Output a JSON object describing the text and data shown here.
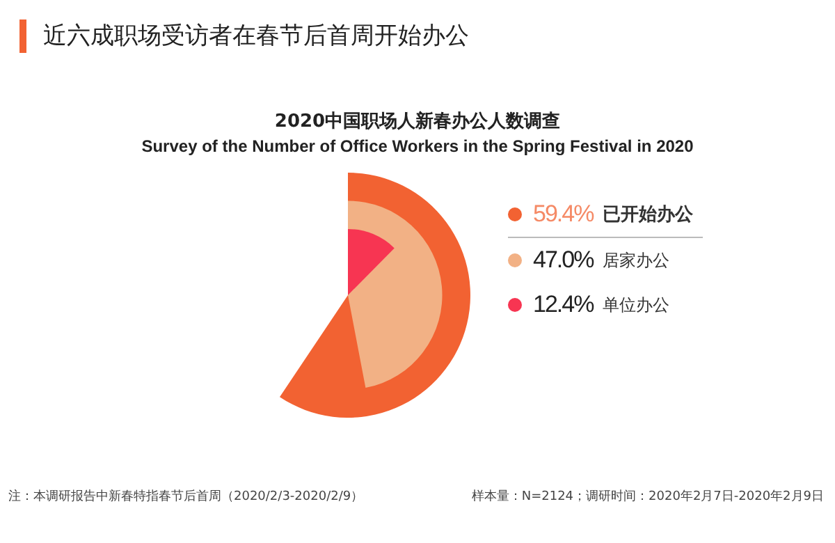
{
  "chart_data": {
    "type": "other",
    "title": "近六成职场受访者在春节后首周开始办公",
    "subtitle": "2020中国职场人新春办公人数调查",
    "annotations": [
      "Survey of the Number of Office Workers in the Spring Festival in 2020",
      "注：本调研报告中新春特指春节后首周（2020/2/3-2020/2/9）",
      "样本量：N=2124；调研时间：2020年2月7日-2020年2月9日"
    ],
    "categories": [
      "已开始办公",
      "居家办公",
      "单位办公"
    ],
    "values": [
      59.4,
      47.0,
      12.4
    ],
    "value_labels": [
      "59.4%",
      "47.0%",
      "12.4%"
    ],
    "colors": [
      "#f26232",
      "#f2b185",
      "#f73552"
    ]
  }
}
